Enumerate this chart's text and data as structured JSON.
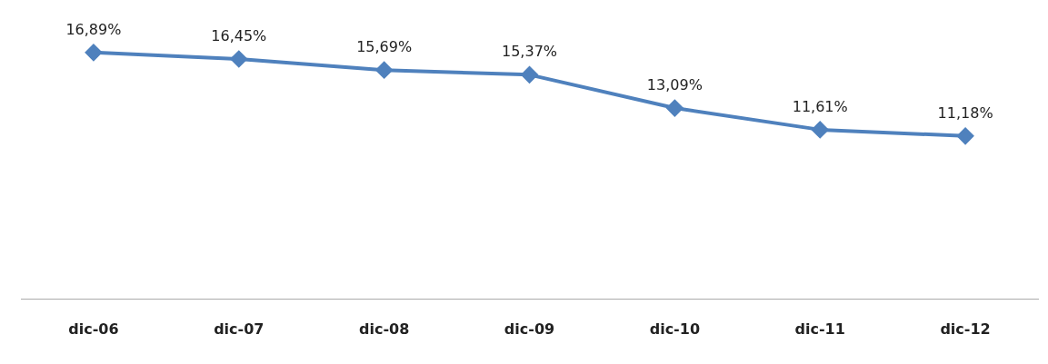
{
  "chart_data": {
    "type": "line",
    "categories": [
      "dic-06",
      "dic-07",
      "dic-08",
      "dic-09",
      "dic-10",
      "dic-11",
      "dic-12"
    ],
    "series": [
      {
        "color": "#4f81bd",
        "values": [
          16.89,
          16.45,
          15.69,
          15.37,
          13.09,
          11.61,
          11.18
        ],
        "value_labels": [
          "16,89%",
          "16,45%",
          "15,69%",
          "15,37%",
          "13,09%",
          "11,61%",
          "11,18%"
        ]
      }
    ],
    "tick_labels": "x",
    "grid": false,
    "legend": false,
    "marker": "diamond",
    "line_style": "solid"
  }
}
